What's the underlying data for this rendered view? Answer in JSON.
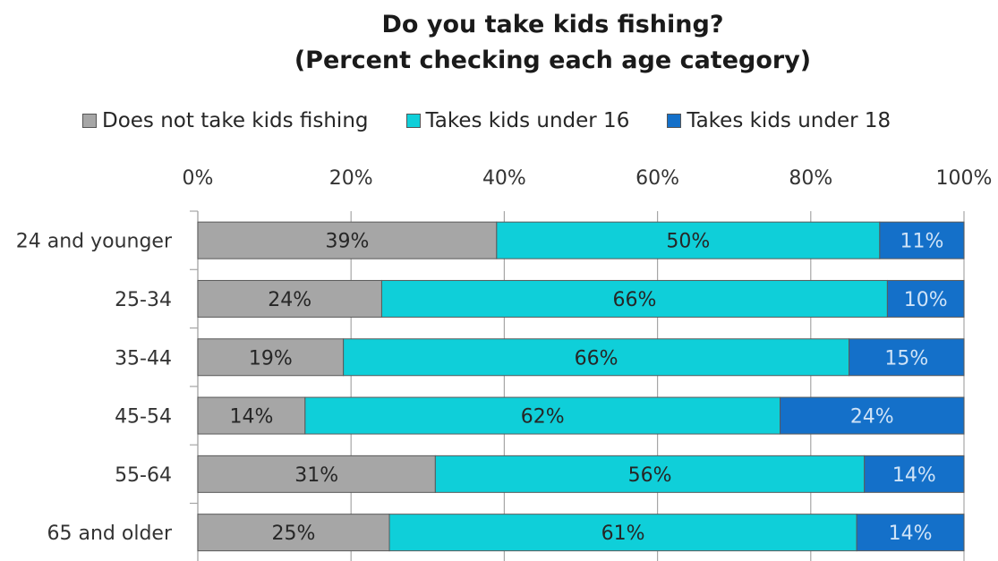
{
  "chart_data": {
    "type": "bar",
    "orientation": "horizontal",
    "stacked": true,
    "title_line1": "Do you take kids fishing?",
    "title_line2": "(Percent checking each age category)",
    "categories": [
      "24 and younger",
      "25-34",
      "35-44",
      "45-54",
      "55-64",
      "65 and older"
    ],
    "series": [
      {
        "name": "Does not take kids fishing",
        "color": "#a6a6a6",
        "label_color": "#262626",
        "values": [
          39,
          24,
          19,
          14,
          31,
          25
        ],
        "labels": [
          "39%",
          "24%",
          "19%",
          "14%",
          "31%",
          "25%"
        ]
      },
      {
        "name": "Takes kids under 16",
        "color": "#0fcfd9",
        "label_color": "#262626",
        "values": [
          50,
          66,
          66,
          62,
          56,
          61
        ],
        "labels": [
          "50%",
          "66%",
          "66%",
          "62%",
          "56%",
          "61%"
        ]
      },
      {
        "name": "Takes kids under 18",
        "color": "#1470c9",
        "label_color": "#cfe3f7",
        "values": [
          11,
          10,
          15,
          24,
          14,
          14
        ],
        "labels": [
          "11%",
          "10%",
          "15%",
          "24%",
          "14%",
          "14%"
        ]
      }
    ],
    "xlim": [
      0,
      100
    ],
    "x_ticks": [
      0,
      20,
      40,
      60,
      80,
      100
    ],
    "x_tick_labels": [
      "0%",
      "20%",
      "40%",
      "60%",
      "80%",
      "100%"
    ],
    "x_axis_position": "top",
    "gridlines": true,
    "legend_position": "top"
  }
}
